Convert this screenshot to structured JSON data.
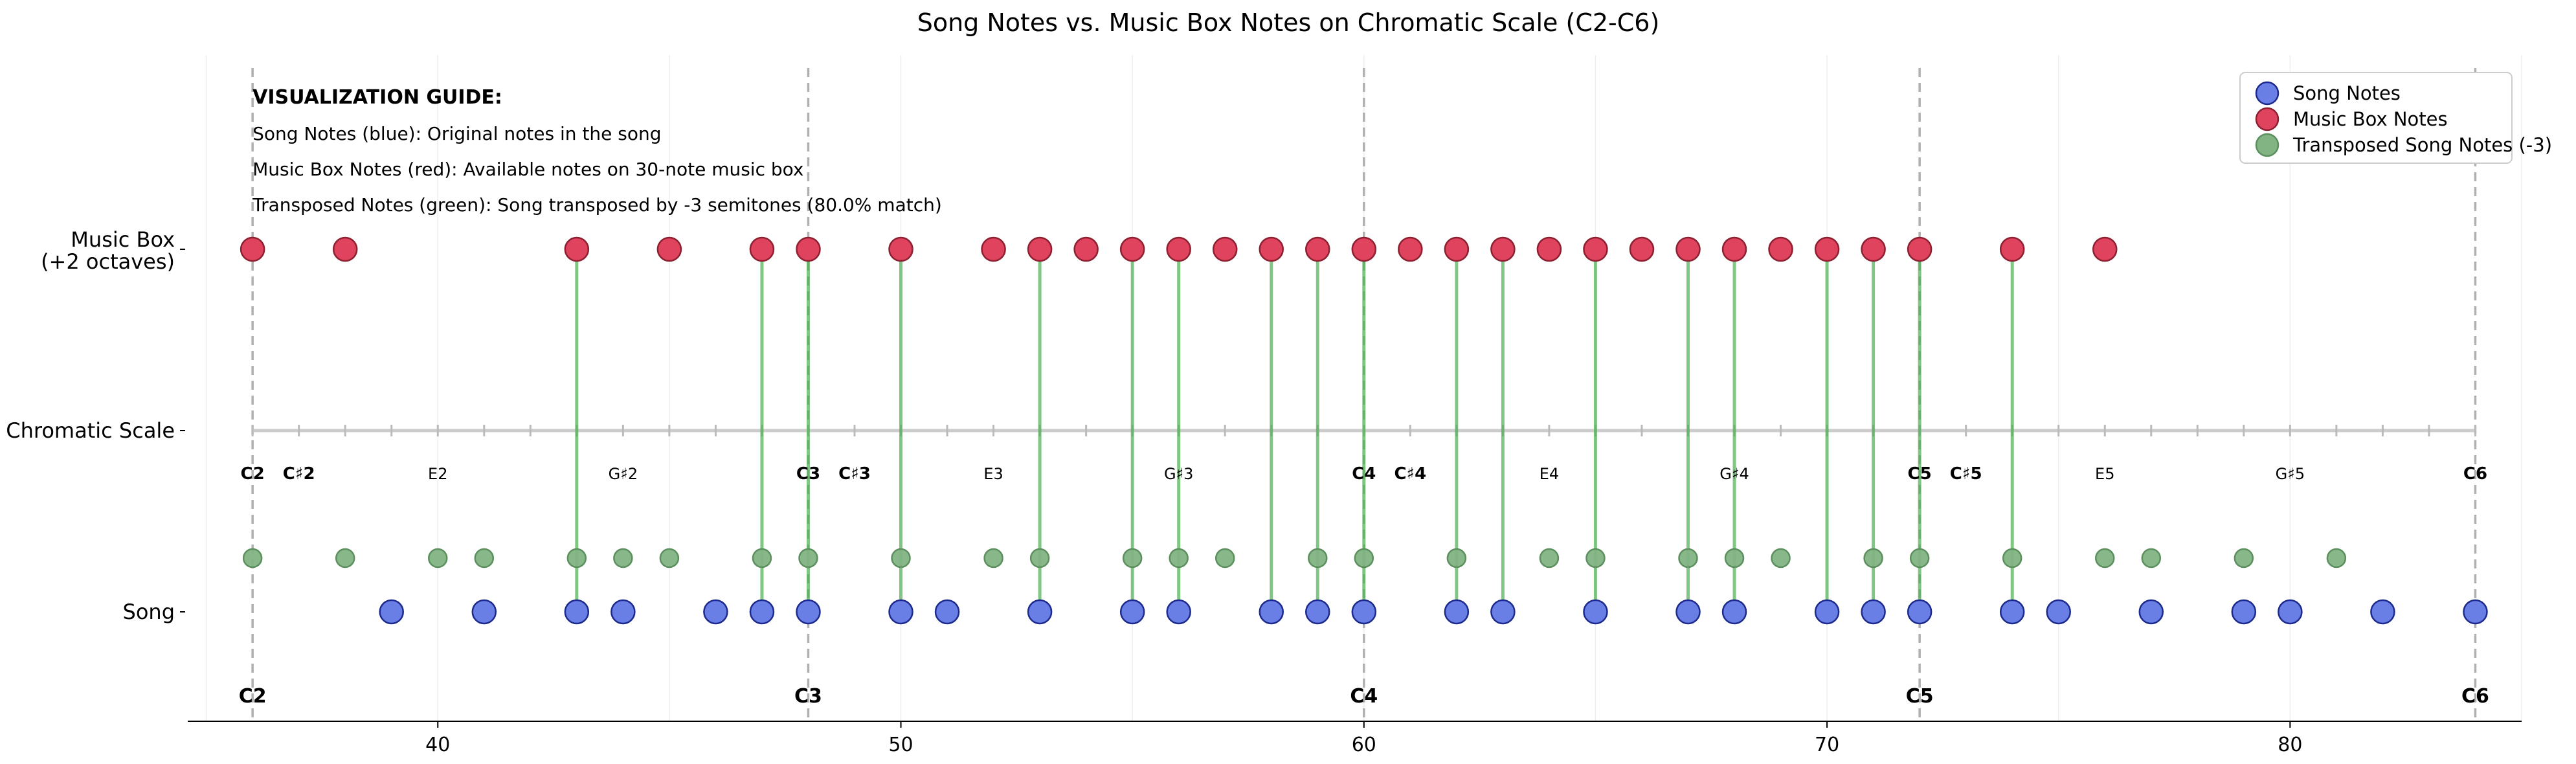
{
  "chart_data": {
    "type": "scatter",
    "title": "Song Notes vs. Music Box Notes on Chromatic Scale (C2-C6)",
    "xlim": [
      34.6,
      85.0
    ],
    "xticks": [
      40,
      50,
      60,
      70,
      80
    ],
    "y_categories": [
      {
        "key": "song",
        "label": "Song",
        "label2": ""
      },
      {
        "key": "chromatic",
        "label": "Chromatic Scale",
        "label2": ""
      },
      {
        "key": "musicbox",
        "label": "Music Box",
        "label2": "(+2 octaves)"
      }
    ],
    "series": [
      {
        "name": "Song Notes",
        "color": "#6a7fe6",
        "edge": "#1c2a8c",
        "row": "song",
        "x": [
          39,
          41,
          43,
          44,
          46,
          47,
          48,
          50,
          51,
          53,
          55,
          56,
          58,
          59,
          60,
          62,
          63,
          65,
          67,
          68,
          70,
          71,
          72,
          74,
          75,
          77,
          79,
          80,
          82,
          84
        ]
      },
      {
        "name": "Music Box Notes",
        "color": "#e0435e",
        "edge": "#8c1f30",
        "row": "musicbox",
        "x": [
          36,
          38,
          43,
          45,
          47,
          48,
          50,
          52,
          53,
          54,
          55,
          56,
          57,
          58,
          59,
          60,
          61,
          62,
          63,
          64,
          65,
          66,
          67,
          68,
          69,
          70,
          71,
          72,
          74,
          76
        ]
      },
      {
        "name": "Transposed Song Notes (-3)",
        "color": "#82b383",
        "edge": "#5c8f5e",
        "row": "transposed",
        "x": [
          36,
          38,
          40,
          41,
          43,
          44,
          45,
          47,
          48,
          50,
          52,
          53,
          55,
          56,
          57,
          59,
          60,
          62,
          64,
          65,
          67,
          68,
          69,
          71,
          72,
          74,
          76,
          77,
          79,
          81
        ]
      }
    ],
    "matches": [
      43,
      47,
      48,
      50,
      53,
      55,
      56,
      58,
      59,
      60,
      62,
      63,
      65,
      67,
      68,
      70,
      71,
      72,
      74
    ],
    "octave_lines": [
      36,
      48,
      60,
      72,
      84
    ],
    "chromatic_range": [
      36,
      84
    ],
    "note_labels": [
      {
        "x": 36,
        "text": "C2",
        "bold": true
      },
      {
        "x": 37,
        "text": "C♯2",
        "bold": true
      },
      {
        "x": 40,
        "text": "E2",
        "bold": false
      },
      {
        "x": 44,
        "text": "G♯2",
        "bold": false
      },
      {
        "x": 48,
        "text": "C3",
        "bold": true
      },
      {
        "x": 49,
        "text": "C♯3",
        "bold": true
      },
      {
        "x": 52,
        "text": "E3",
        "bold": false
      },
      {
        "x": 56,
        "text": "G♯3",
        "bold": false
      },
      {
        "x": 60,
        "text": "C4",
        "bold": true
      },
      {
        "x": 61,
        "text": "C♯4",
        "bold": true
      },
      {
        "x": 64,
        "text": "E4",
        "bold": false
      },
      {
        "x": 68,
        "text": "G♯4",
        "bold": false
      },
      {
        "x": 72,
        "text": "C5",
        "bold": true
      },
      {
        "x": 73,
        "text": "C♯5",
        "bold": true
      },
      {
        "x": 76,
        "text": "E5",
        "bold": false
      },
      {
        "x": 80,
        "text": "G♯5",
        "bold": false
      },
      {
        "x": 84,
        "text": "C6",
        "bold": true
      }
    ],
    "c_labels": [
      {
        "x": 36,
        "text": "C2"
      },
      {
        "x": 48,
        "text": "C3"
      },
      {
        "x": 60,
        "text": "C4"
      },
      {
        "x": 72,
        "text": "C5"
      },
      {
        "x": 84,
        "text": "C6"
      }
    ],
    "guide": {
      "heading": "VISUALIZATION GUIDE:",
      "lines": [
        "Song Notes (blue): Original notes in the song",
        "Music Box Notes (red): Available notes on 30-note music box",
        "Transposed Notes (green): Song transposed by -3 semitones (80.0% match)"
      ]
    },
    "legend_position": "top-right",
    "grid": true,
    "colors": {
      "match_line": "#4caf50",
      "octave_line": "#b0b0b0",
      "chromatic_line": "#cccccc",
      "grid": "#eeeeee"
    }
  }
}
